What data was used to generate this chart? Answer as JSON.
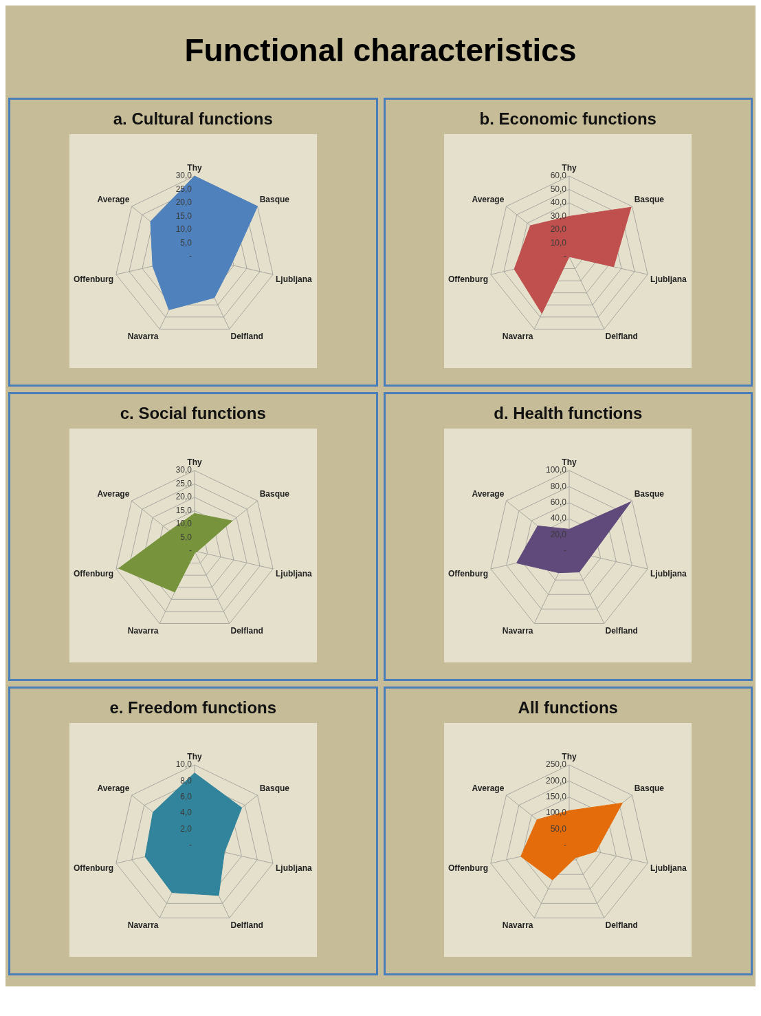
{
  "chart_data": [
    {
      "type": "other",
      "title": "Functional characteristics"
    },
    {
      "type": "radar",
      "title": "a. Cultural functions",
      "categories": [
        "Thy",
        "Basque",
        "Ljubljana",
        "Delfland",
        "Navarra",
        "Offenburg",
        "Average"
      ],
      "ylim": [
        0,
        30
      ],
      "yticks": [
        {
          "value": 0,
          "label": "-"
        },
        {
          "value": 5,
          "label": "5,0"
        },
        {
          "value": 10,
          "label": "10,0"
        },
        {
          "value": 15,
          "label": "15,0"
        },
        {
          "value": 20,
          "label": "20,0"
        },
        {
          "value": 25,
          "label": "25,0"
        },
        {
          "value": 30,
          "label": "30,0"
        }
      ],
      "grid": true,
      "series": [
        {
          "color": "#4f81bd",
          "values": [
            30,
            30,
            14,
            17,
            22,
            16,
            21
          ]
        }
      ]
    },
    {
      "type": "radar",
      "title": "b. Economic functions",
      "categories": [
        "Thy",
        "Basque",
        "Ljubljana",
        "Delfland",
        "Navarra",
        "Offenburg",
        "Average"
      ],
      "ylim": [
        0,
        60
      ],
      "yticks": [
        {
          "value": 0,
          "label": "-"
        },
        {
          "value": 10,
          "label": "10,0"
        },
        {
          "value": 20,
          "label": "20,0"
        },
        {
          "value": 30,
          "label": "30,0"
        },
        {
          "value": 40,
          "label": "40,0"
        },
        {
          "value": 50,
          "label": "50,0"
        },
        {
          "value": 60,
          "label": "60,0"
        }
      ],
      "grid": true,
      "series": [
        {
          "color": "#c0504d",
          "values": [
            30,
            59,
            34,
            0,
            47,
            42,
            37
          ]
        }
      ]
    },
    {
      "type": "radar",
      "title": "c. Social functions",
      "categories": [
        "Thy",
        "Basque",
        "Ljubljana",
        "Delfland",
        "Navarra",
        "Offenburg",
        "Average"
      ],
      "ylim": [
        0,
        30
      ],
      "yticks": [
        {
          "value": 0,
          "label": "-"
        },
        {
          "value": 5,
          "label": "5,0"
        },
        {
          "value": 10,
          "label": "10,0"
        },
        {
          "value": 15,
          "label": "15,0"
        },
        {
          "value": 20,
          "label": "20,0"
        },
        {
          "value": 25,
          "label": "25,0"
        },
        {
          "value": 30,
          "label": "30,0"
        }
      ],
      "grid": true,
      "series": [
        {
          "color": "#77933c",
          "values": [
            14,
            18,
            1,
            0.5,
            17,
            29,
            12
          ]
        }
      ]
    },
    {
      "type": "radar",
      "title": "d. Health functions",
      "categories": [
        "Thy",
        "Basque",
        "Ljubljana",
        "Delfland",
        "Navarra",
        "Offenburg",
        "Average"
      ],
      "ylim": [
        0,
        100
      ],
      "yticks": [
        {
          "value": 0,
          "label": "-"
        },
        {
          "value": 20,
          "label": "20,0"
        },
        {
          "value": 40,
          "label": "40,0"
        },
        {
          "value": 60,
          "label": "60,0"
        },
        {
          "value": 80,
          "label": "80,0"
        },
        {
          "value": 100,
          "label": "100,0"
        }
      ],
      "grid": true,
      "series": [
        {
          "color": "#604a7b",
          "values": [
            27,
            98,
            28,
            29,
            30,
            67,
            50
          ]
        }
      ]
    },
    {
      "type": "radar",
      "title": "e. Freedom functions",
      "categories": [
        "Thy",
        "Basque",
        "Ljubljana",
        "Delfland",
        "Navarra",
        "Offenburg",
        "Average"
      ],
      "ylim": [
        0,
        10
      ],
      "yticks": [
        {
          "value": 0,
          "label": "-"
        },
        {
          "value": 2,
          "label": "2,0"
        },
        {
          "value": 4,
          "label": "4,0"
        },
        {
          "value": 6,
          "label": "6,0"
        },
        {
          "value": 8,
          "label": "8,0"
        },
        {
          "value": 10,
          "label": "10,0"
        }
      ],
      "grid": true,
      "series": [
        {
          "color": "#31849b",
          "values": [
            9.0,
            7.5,
            3.8,
            6.9,
            6.5,
            6.3,
            6.6
          ]
        }
      ]
    },
    {
      "type": "radar",
      "title": "All functions",
      "categories": [
        "Thy",
        "Basque",
        "Ljubljana",
        "Delfland",
        "Navarra",
        "Offenburg",
        "Average"
      ],
      "ylim": [
        0,
        250
      ],
      "yticks": [
        {
          "value": 0,
          "label": "-"
        },
        {
          "value": 50,
          "label": "50,0"
        },
        {
          "value": 100,
          "label": "100,0"
        },
        {
          "value": 150,
          "label": "150,0"
        },
        {
          "value": 200,
          "label": "200,0"
        },
        {
          "value": 250,
          "label": "250,0"
        }
      ],
      "grid": true,
      "series": [
        {
          "color": "#e46c0a",
          "values": [
            108,
            211,
            85,
            43,
            119,
            154,
            128
          ]
        }
      ]
    }
  ]
}
